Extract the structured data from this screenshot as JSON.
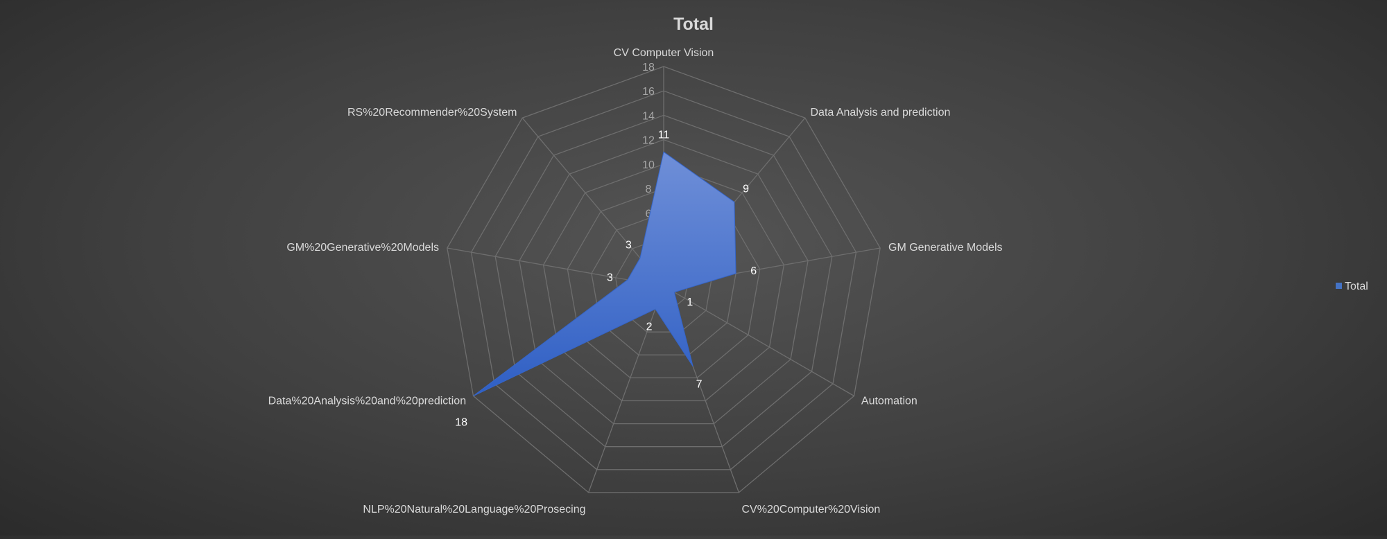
{
  "chart_data": {
    "type": "radar",
    "title": "Total",
    "categories": [
      "CV Computer Vision",
      "Data Analysis and prediction",
      "GM Generative Models",
      "Automation",
      "CV%20Computer%20Vision",
      "NLP%20Natural%20Language%20Prosecing",
      "Data%20Analysis%20and%20prediction",
      "GM%20Generative%20Models",
      "RS%20Recommender%20System"
    ],
    "series": [
      {
        "name": "Total",
        "values": [
          11,
          9,
          6,
          1,
          7,
          2,
          18,
          3,
          3
        ]
      }
    ],
    "rlim": [
      0,
      18
    ],
    "r_ticks": [
      0,
      2,
      4,
      6,
      8,
      10,
      12,
      14,
      16,
      18
    ],
    "legend_position": "right",
    "colors": {
      "series_fill": "#4472c4",
      "gridline": "#6e6e6e",
      "tick_label": "#a6a6a6",
      "category_label": "#d9d9d9",
      "data_label": "#ffffff",
      "title": "#d9d9d9"
    }
  }
}
